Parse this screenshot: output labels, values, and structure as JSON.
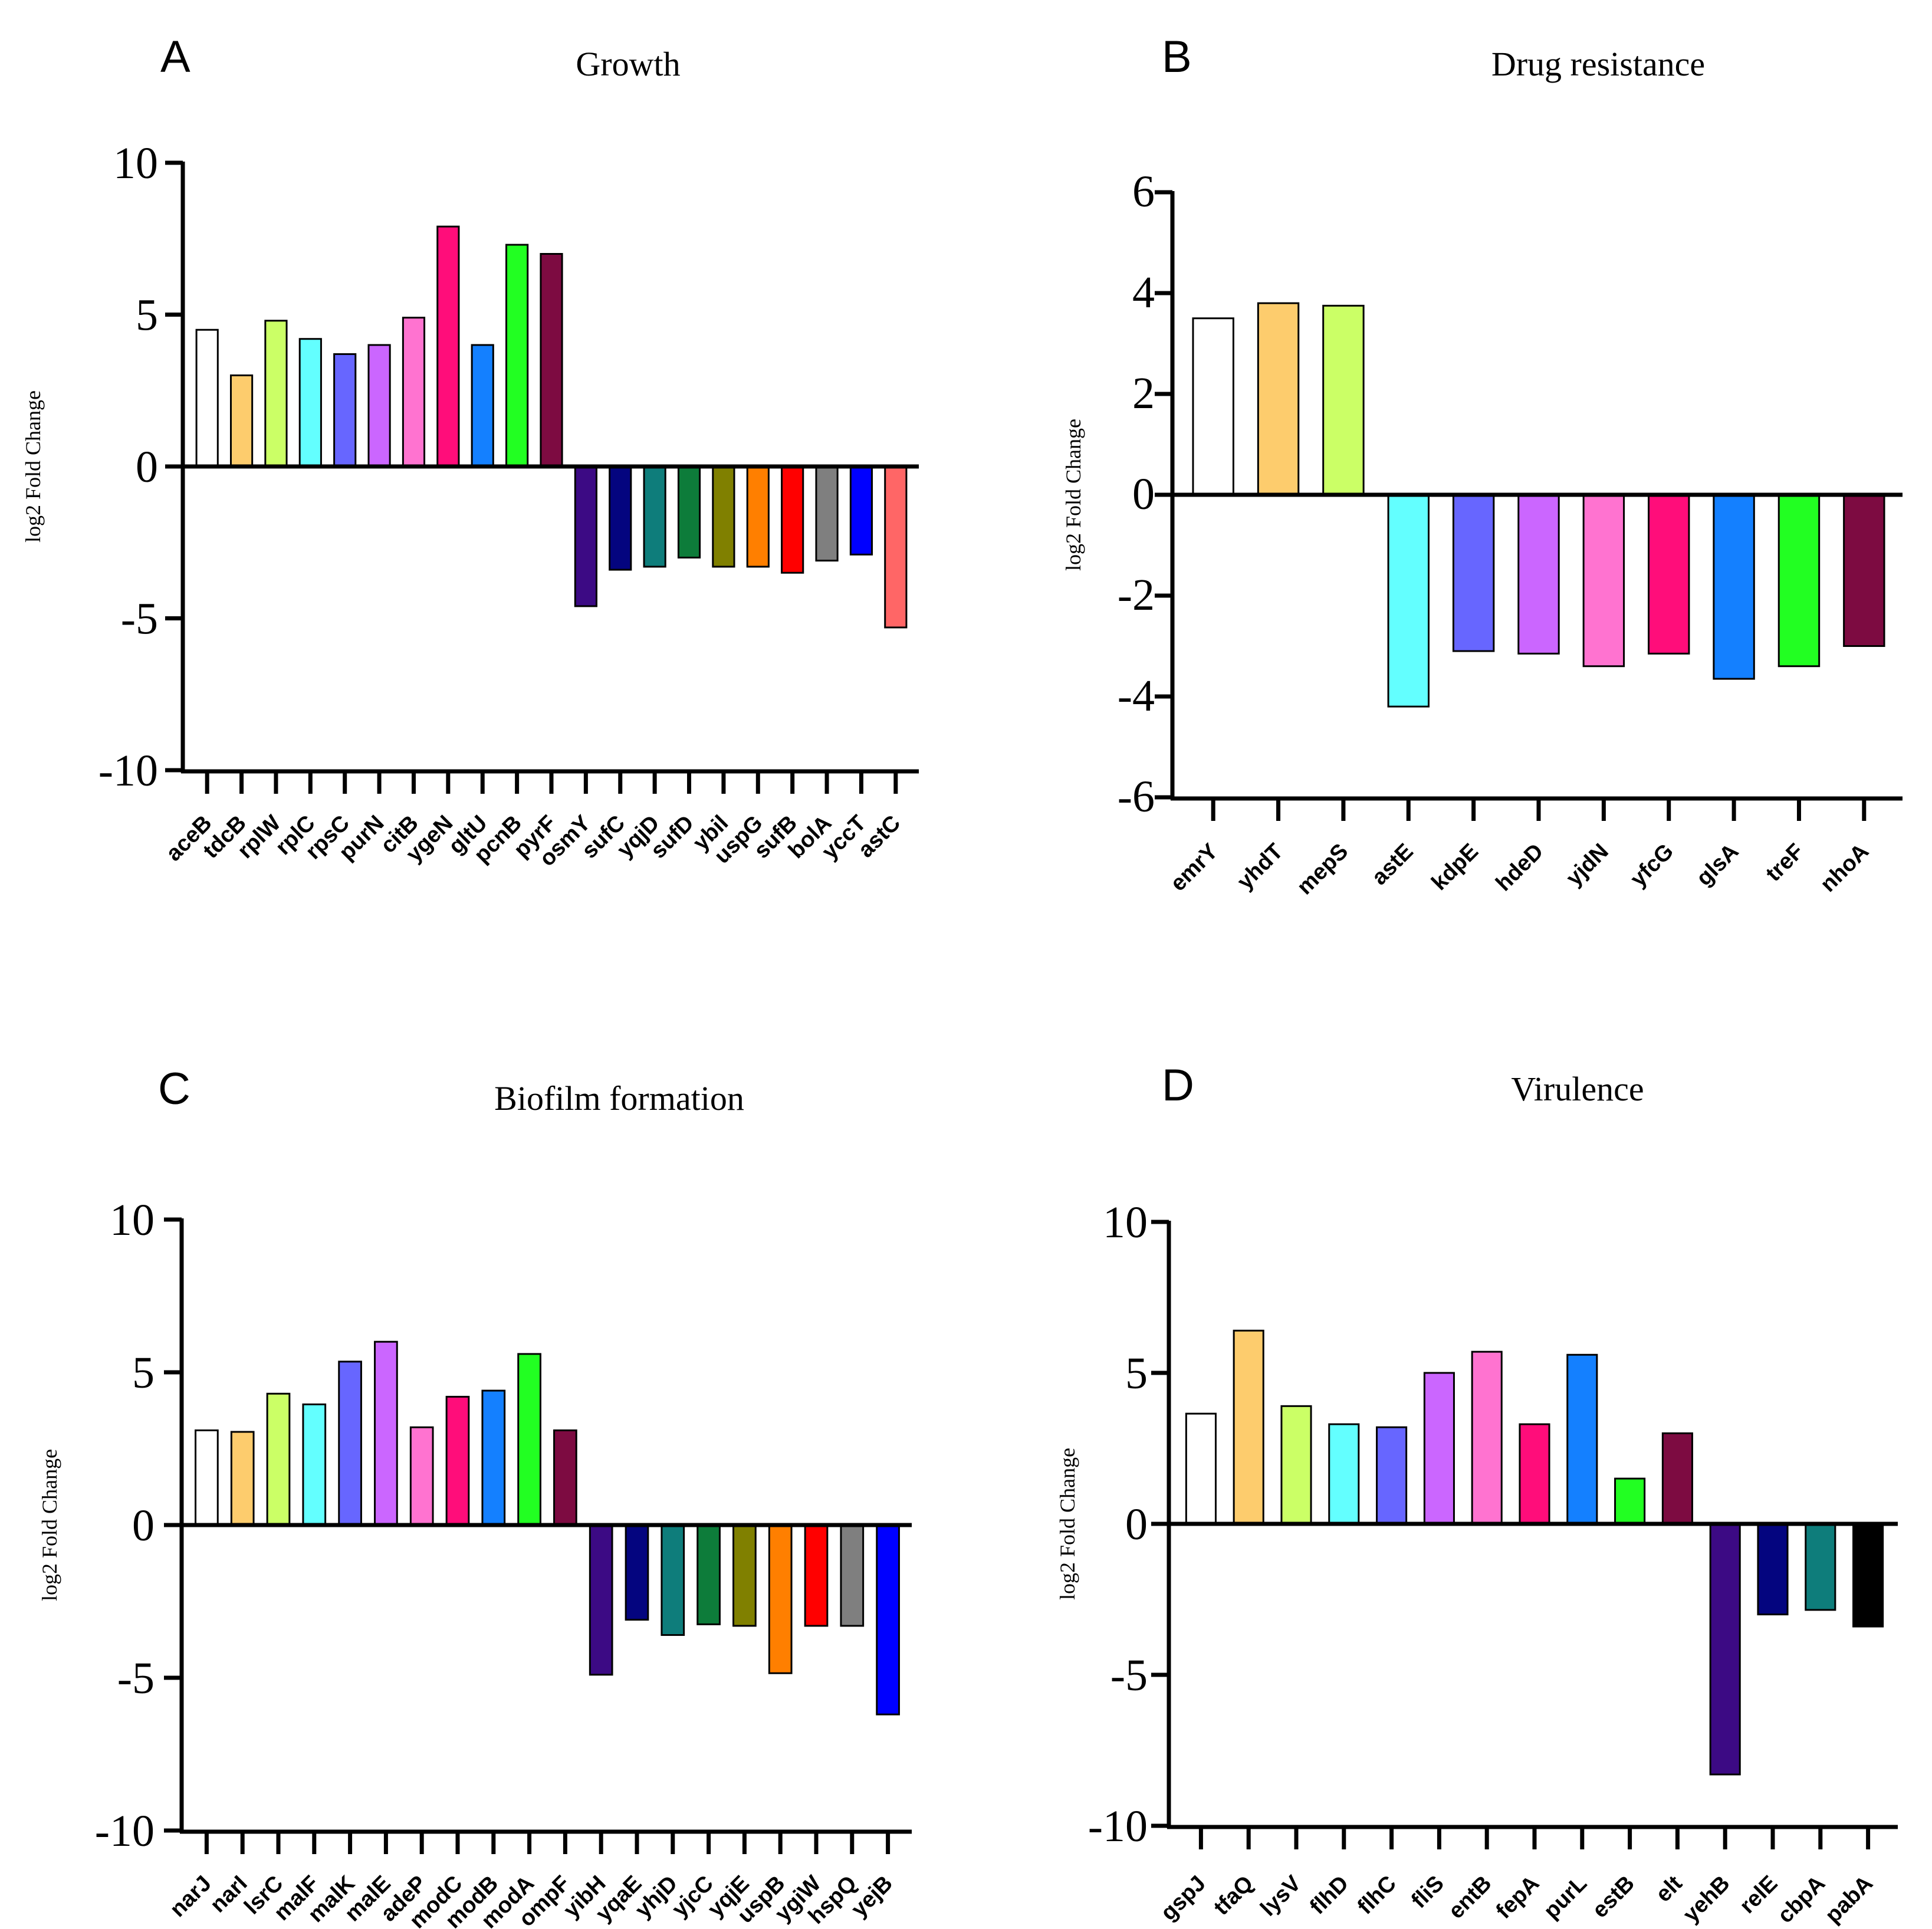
{
  "chart_data": [
    {
      "panel": "A",
      "type": "bar",
      "title": "Growth",
      "xlabel": "",
      "ylabel": "log2 Fold Change",
      "ylim": [
        -10,
        10
      ],
      "yticks": [
        10,
        5,
        0,
        -5,
        -10
      ],
      "ytick_labels": [
        "10",
        "5",
        "0",
        "-5",
        "-10"
      ],
      "grid": false,
      "categories": [
        "aceB",
        "tdcB",
        "rplW",
        "rplC",
        "rpsC",
        "purN",
        "citB",
        "ygeN",
        "gltU",
        "pcnB",
        "pyrF",
        "osmY",
        "sufC",
        "yqjD",
        "sufD",
        "ybil",
        "uspG",
        "sufB",
        "bolA",
        "yccT",
        "astC"
      ],
      "values": [
        4.5,
        3.0,
        4.8,
        4.2,
        3.7,
        4.0,
        4.9,
        7.9,
        4.0,
        7.3,
        7.0,
        -4.6,
        -3.4,
        -3.3,
        -3.0,
        -3.3,
        -3.3,
        -3.5,
        -3.1,
        -2.9,
        -5.3
      ],
      "colors": [
        "#ffffff",
        "#fdcc6d",
        "#cbff66",
        "#63ffff",
        "#6766ff",
        "#cb66ff",
        "#ff73d0",
        "#ff0d7a",
        "#1480ff",
        "#22ff22",
        "#7d0b41",
        "#3c0a84",
        "#04057f",
        "#0e7d7b",
        "#0d7c3a",
        "#808000",
        "#ff7f00",
        "#ff0000",
        "#7f7f7f",
        "#0000ff",
        "#ff6666"
      ]
    },
    {
      "panel": "B",
      "type": "bar",
      "title": "Drug resistance",
      "xlabel": "",
      "ylabel": "log2 Fold Change",
      "ylim": [
        -6,
        6
      ],
      "yticks": [
        6,
        4,
        2,
        0,
        -2,
        -4,
        -6
      ],
      "ytick_labels": [
        "6",
        "4",
        "2",
        "0",
        "-2",
        "-4",
        "-6"
      ],
      "grid": false,
      "categories": [
        "emrY",
        "yhdT",
        "mepS",
        "astE",
        "kdpE",
        "hdeD",
        "yjdN",
        "yfcG",
        "glsA",
        "treF",
        "nhoA"
      ],
      "values": [
        3.5,
        3.8,
        3.75,
        -4.2,
        -3.1,
        -3.15,
        -3.4,
        -3.15,
        -3.65,
        -3.4,
        -3.0
      ],
      "colors": [
        "#ffffff",
        "#fdcc6d",
        "#cbff66",
        "#63ffff",
        "#6766ff",
        "#cb66ff",
        "#ff73d0",
        "#ff0d7a",
        "#1480ff",
        "#22ff22",
        "#7d0b41"
      ]
    },
    {
      "panel": "C",
      "type": "bar",
      "title": "Biofilm formation",
      "xlabel": "",
      "ylabel": "log2 Fold Change",
      "ylim": [
        -10,
        10
      ],
      "yticks": [
        10,
        5,
        0,
        -5,
        -10
      ],
      "ytick_labels": [
        "10",
        "5",
        "0",
        "-5",
        "-10"
      ],
      "grid": false,
      "categories": [
        "narJ",
        "narI",
        "lsrC",
        "malF",
        "malK",
        "malE",
        "adeP",
        "modC",
        "modB",
        "modA",
        "ompF",
        "yibH",
        "yqaE",
        "yhjD",
        "yjcC",
        "yqjE",
        "uspB",
        "ygiW",
        "hspQ",
        "yejB"
      ],
      "values": [
        3.1,
        3.05,
        4.3,
        3.95,
        5.35,
        6.0,
        3.2,
        4.2,
        4.4,
        5.6,
        3.1,
        -4.9,
        -3.1,
        -3.6,
        -3.25,
        -3.3,
        -4.85,
        -3.3,
        -3.3,
        -6.2
      ],
      "colors": [
        "#ffffff",
        "#fdcc6d",
        "#cbff66",
        "#63ffff",
        "#6766ff",
        "#cb66ff",
        "#ff73d0",
        "#ff0d7a",
        "#1480ff",
        "#22ff22",
        "#7d0b41",
        "#3c0a84",
        "#04057f",
        "#0e7d7b",
        "#0d7c3a",
        "#808000",
        "#ff7f00",
        "#ff0000",
        "#7f7f7f",
        "#0000ff"
      ]
    },
    {
      "panel": "D",
      "type": "bar",
      "title": "Virulence",
      "xlabel": "",
      "ylabel": "log2 Fold Change",
      "ylim": [
        -10,
        10
      ],
      "yticks": [
        10,
        5,
        0,
        -5,
        -10
      ],
      "ytick_labels": [
        "10",
        "5",
        "0",
        "-5",
        "-10"
      ],
      "grid": false,
      "categories": [
        "gspJ",
        "tfaQ",
        "lysV",
        "flhD",
        "flhC",
        "fliS",
        "entB",
        "fepA",
        "purL",
        "estB",
        "elt",
        "yehB",
        "relE",
        "cbpA",
        "pabA"
      ],
      "values": [
        3.65,
        6.4,
        3.9,
        3.3,
        3.2,
        5.0,
        5.7,
        3.3,
        5.6,
        1.5,
        3.0,
        -8.3,
        -3.0,
        -2.85,
        -3.4
      ],
      "colors": [
        "#ffffff",
        "#fdcc6d",
        "#cbff66",
        "#63ffff",
        "#6766ff",
        "#cb66ff",
        "#ff73d0",
        "#ff0d7a",
        "#1480ff",
        "#22ff22",
        "#7d0b41",
        "#3c0a84",
        "#04057f",
        "#0e7d7b",
        "#000000"
      ]
    }
  ]
}
